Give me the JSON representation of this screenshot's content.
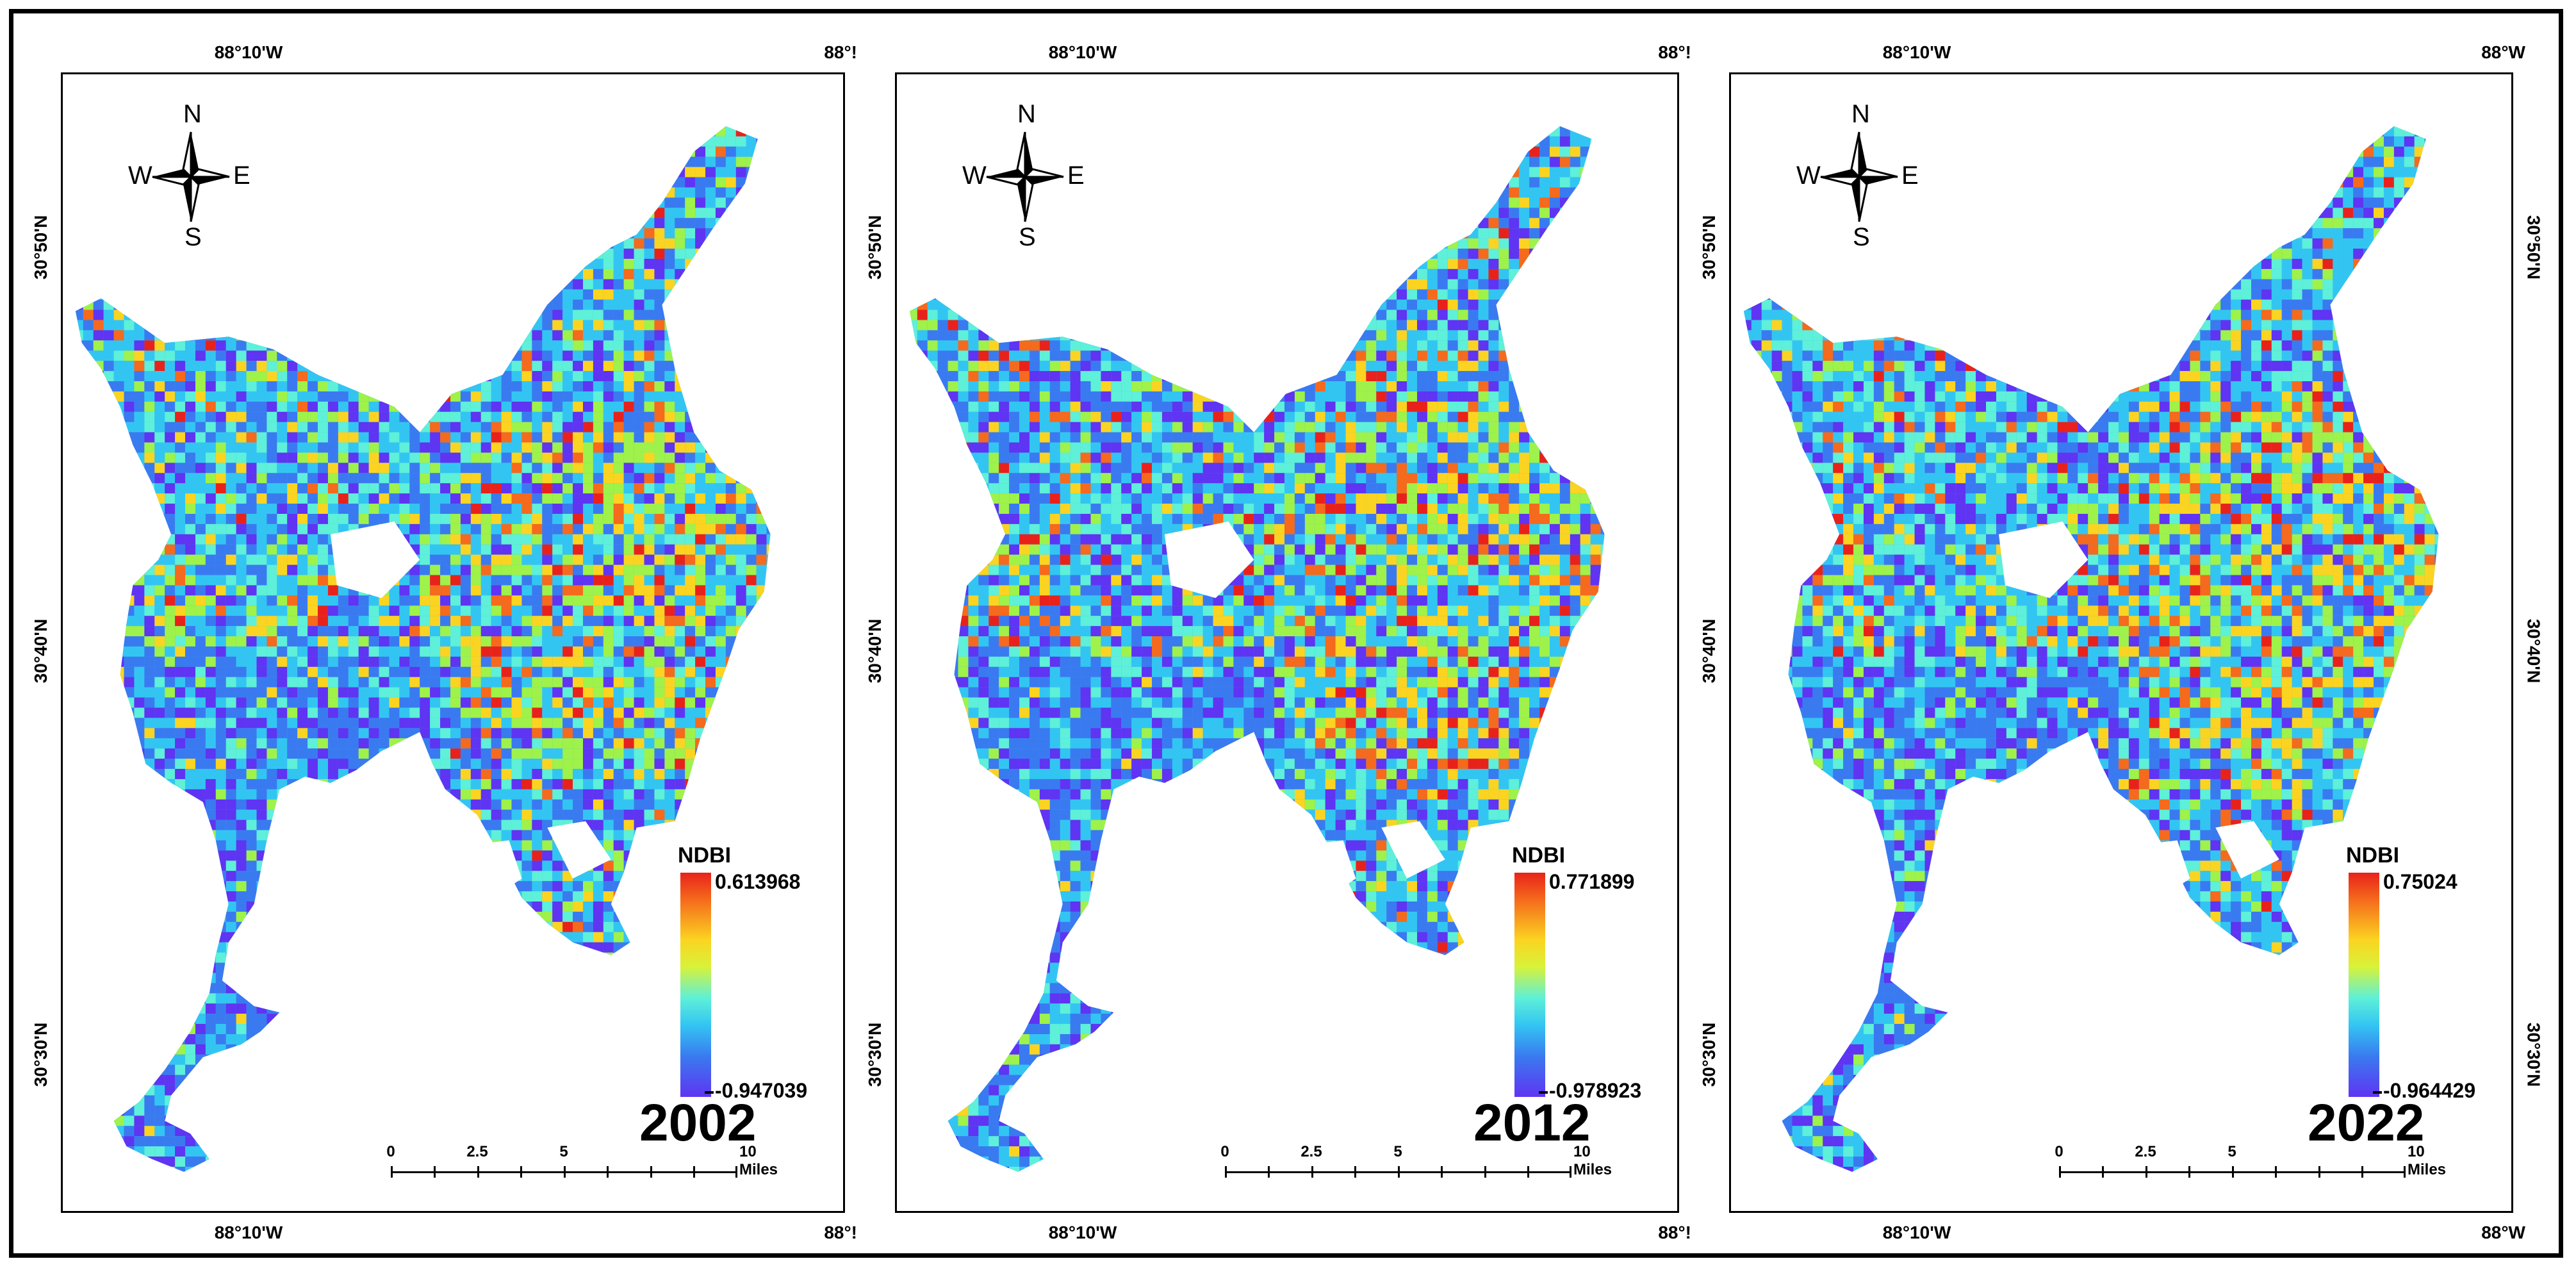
{
  "figure": {
    "compass": {
      "n": "N",
      "s": "S",
      "e": "E",
      "w": "W"
    },
    "legend_title": "NDBI",
    "colors": {
      "high": "#e8221b",
      "mid": "#fbd421",
      "low_mid": "#33c5f2",
      "low": "#5f34f2"
    },
    "panels": [
      {
        "year": "2002",
        "max": "0.613968",
        "min": "-0.947039",
        "top_lon": "88°10'W",
        "top_lon_right": "88°!",
        "bottom_lon": "88°10'W",
        "bottom_lon_right": "88°!",
        "lat_upper": "30°50'N",
        "lat_mid": "30°40'N",
        "lat_lower": "30°30'N",
        "show_right_lat": false
      },
      {
        "year": "2012",
        "max": "0.771899",
        "min": "-0.978923",
        "top_lon": "88°10'W",
        "top_lon_right": "88°!",
        "bottom_lon": "88°10'W",
        "bottom_lon_right": "88°!",
        "lat_upper": "30°50'N",
        "lat_mid": "30°40'N",
        "lat_lower": "30°30'N",
        "show_right_lat": false
      },
      {
        "year": "2022",
        "max": "0.75024",
        "min": "-0.964429",
        "top_lon": "88°10'W",
        "top_lon_right": "88°W",
        "bottom_lon": "88°10'W",
        "bottom_lon_right": "88°W",
        "lat_upper": "30°50'N",
        "lat_mid": "30°40'N",
        "lat_lower": "30°30'N",
        "show_right_lat": true
      }
    ],
    "scale": {
      "ticks": [
        "0",
        "2.5",
        "5",
        "10 Miles"
      ]
    }
  }
}
